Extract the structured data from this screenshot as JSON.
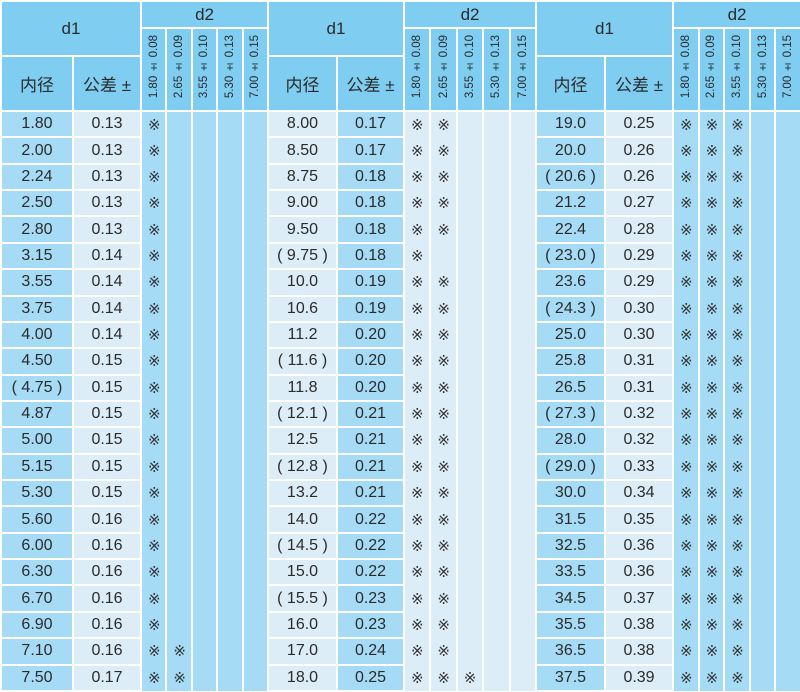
{
  "header": {
    "d1": "d1",
    "d2": "d2",
    "inner_diameter": "内径",
    "tolerance": "公差 ±",
    "d2_sizes": [
      "1.80 ± 0.08",
      "2.65 ± 0.09",
      "3.55 ± 0.10",
      "5.30 ± 0.13",
      "7.00 ± 0.15"
    ]
  },
  "mark": "※",
  "colors": {
    "header": "#7fcdf1",
    "cell_blue": "#a6dbf5",
    "cell_light": "#dcedf8"
  },
  "blocks": [
    {
      "rows": [
        {
          "d1": "1.80",
          "tol": "0.13",
          "marks": [
            1,
            0,
            0,
            0,
            0
          ]
        },
        {
          "d1": "2.00",
          "tol": "0.13",
          "marks": [
            1,
            0,
            0,
            0,
            0
          ]
        },
        {
          "d1": "2.24",
          "tol": "0.13",
          "marks": [
            1,
            0,
            0,
            0,
            0
          ]
        },
        {
          "d1": "2.50",
          "tol": "0.13",
          "marks": [
            1,
            0,
            0,
            0,
            0
          ]
        },
        {
          "d1": "2.80",
          "tol": "0.13",
          "marks": [
            1,
            0,
            0,
            0,
            0
          ]
        },
        {
          "d1": "3.15",
          "tol": "0.14",
          "marks": [
            1,
            0,
            0,
            0,
            0
          ]
        },
        {
          "d1": "3.55",
          "tol": "0.14",
          "marks": [
            1,
            0,
            0,
            0,
            0
          ]
        },
        {
          "d1": "3.75",
          "tol": "0.14",
          "marks": [
            1,
            0,
            0,
            0,
            0
          ]
        },
        {
          "d1": "4.00",
          "tol": "0.14",
          "marks": [
            1,
            0,
            0,
            0,
            0
          ]
        },
        {
          "d1": "4.50",
          "tol": "0.15",
          "marks": [
            1,
            0,
            0,
            0,
            0
          ]
        },
        {
          "d1": "( 4.75 )",
          "tol": "0.15",
          "marks": [
            1,
            0,
            0,
            0,
            0
          ]
        },
        {
          "d1": "4.87",
          "tol": "0.15",
          "marks": [
            1,
            0,
            0,
            0,
            0
          ]
        },
        {
          "d1": "5.00",
          "tol": "0.15",
          "marks": [
            1,
            0,
            0,
            0,
            0
          ]
        },
        {
          "d1": "5.15",
          "tol": "0.15",
          "marks": [
            1,
            0,
            0,
            0,
            0
          ]
        },
        {
          "d1": "5.30",
          "tol": "0.15",
          "marks": [
            1,
            0,
            0,
            0,
            0
          ]
        },
        {
          "d1": "5.60",
          "tol": "0.16",
          "marks": [
            1,
            0,
            0,
            0,
            0
          ]
        },
        {
          "d1": "6.00",
          "tol": "0.16",
          "marks": [
            1,
            0,
            0,
            0,
            0
          ]
        },
        {
          "d1": "6.30",
          "tol": "0.16",
          "marks": [
            1,
            0,
            0,
            0,
            0
          ]
        },
        {
          "d1": "6.70",
          "tol": "0.16",
          "marks": [
            1,
            0,
            0,
            0,
            0
          ]
        },
        {
          "d1": "6.90",
          "tol": "0.16",
          "marks": [
            1,
            0,
            0,
            0,
            0
          ]
        },
        {
          "d1": "7.10",
          "tol": "0.16",
          "marks": [
            1,
            1,
            0,
            0,
            0
          ]
        },
        {
          "d1": "7.50",
          "tol": "0.17",
          "marks": [
            1,
            1,
            0,
            0,
            0
          ]
        }
      ]
    },
    {
      "rows": [
        {
          "d1": "8.00",
          "tol": "0.17",
          "marks": [
            1,
            1,
            0,
            0,
            0
          ]
        },
        {
          "d1": "8.50",
          "tol": "0.17",
          "marks": [
            1,
            1,
            0,
            0,
            0
          ]
        },
        {
          "d1": "8.75",
          "tol": "0.18",
          "marks": [
            1,
            1,
            0,
            0,
            0
          ]
        },
        {
          "d1": "9.00",
          "tol": "0.18",
          "marks": [
            1,
            1,
            0,
            0,
            0
          ]
        },
        {
          "d1": "9.50",
          "tol": "0.18",
          "marks": [
            1,
            1,
            0,
            0,
            0
          ]
        },
        {
          "d1": "( 9.75 )",
          "tol": "0.18",
          "marks": [
            1,
            0,
            0,
            0,
            0
          ]
        },
        {
          "d1": "10.0",
          "tol": "0.19",
          "marks": [
            1,
            1,
            0,
            0,
            0
          ]
        },
        {
          "d1": "10.6",
          "tol": "0.19",
          "marks": [
            1,
            1,
            0,
            0,
            0
          ]
        },
        {
          "d1": "11.2",
          "tol": "0.20",
          "marks": [
            1,
            1,
            0,
            0,
            0
          ]
        },
        {
          "d1": "( 11.6 )",
          "tol": "0.20",
          "marks": [
            1,
            1,
            0,
            0,
            0
          ]
        },
        {
          "d1": "11.8",
          "tol": "0.20",
          "marks": [
            1,
            1,
            0,
            0,
            0
          ]
        },
        {
          "d1": "( 12.1 )",
          "tol": "0.21",
          "marks": [
            1,
            1,
            0,
            0,
            0
          ]
        },
        {
          "d1": "12.5",
          "tol": "0.21",
          "marks": [
            1,
            1,
            0,
            0,
            0
          ]
        },
        {
          "d1": "( 12.8 )",
          "tol": "0.21",
          "marks": [
            1,
            1,
            0,
            0,
            0
          ]
        },
        {
          "d1": "13.2",
          "tol": "0.21",
          "marks": [
            1,
            1,
            0,
            0,
            0
          ]
        },
        {
          "d1": "14.0",
          "tol": "0.22",
          "marks": [
            1,
            1,
            0,
            0,
            0
          ]
        },
        {
          "d1": "( 14.5 )",
          "tol": "0.22",
          "marks": [
            1,
            1,
            0,
            0,
            0
          ]
        },
        {
          "d1": "15.0",
          "tol": "0.22",
          "marks": [
            1,
            1,
            0,
            0,
            0
          ]
        },
        {
          "d1": "( 15.5 )",
          "tol": "0.23",
          "marks": [
            1,
            1,
            0,
            0,
            0
          ]
        },
        {
          "d1": "16.0",
          "tol": "0.23",
          "marks": [
            1,
            1,
            0,
            0,
            0
          ]
        },
        {
          "d1": "17.0",
          "tol": "0.24",
          "marks": [
            1,
            1,
            0,
            0,
            0
          ]
        },
        {
          "d1": "18.0",
          "tol": "0.25",
          "marks": [
            1,
            1,
            1,
            0,
            0
          ]
        }
      ]
    },
    {
      "rows": [
        {
          "d1": "19.0",
          "tol": "0.25",
          "marks": [
            1,
            1,
            1,
            0,
            0
          ]
        },
        {
          "d1": "20.0",
          "tol": "0.26",
          "marks": [
            1,
            1,
            1,
            0,
            0
          ]
        },
        {
          "d1": "( 20.6 )",
          "tol": "0.26",
          "marks": [
            1,
            1,
            1,
            0,
            0
          ]
        },
        {
          "d1": "21.2",
          "tol": "0.27",
          "marks": [
            1,
            1,
            1,
            0,
            0
          ]
        },
        {
          "d1": "22.4",
          "tol": "0.28",
          "marks": [
            1,
            1,
            1,
            0,
            0
          ]
        },
        {
          "d1": "( 23.0 )",
          "tol": "0.29",
          "marks": [
            1,
            1,
            1,
            0,
            0
          ]
        },
        {
          "d1": "23.6",
          "tol": "0.29",
          "marks": [
            1,
            1,
            1,
            0,
            0
          ]
        },
        {
          "d1": "( 24.3 )",
          "tol": "0.30",
          "marks": [
            1,
            1,
            1,
            0,
            0
          ]
        },
        {
          "d1": "25.0",
          "tol": "0.30",
          "marks": [
            1,
            1,
            1,
            0,
            0
          ]
        },
        {
          "d1": "25.8",
          "tol": "0.31",
          "marks": [
            1,
            1,
            1,
            0,
            0
          ]
        },
        {
          "d1": "26.5",
          "tol": "0.31",
          "marks": [
            1,
            1,
            1,
            0,
            0
          ]
        },
        {
          "d1": "( 27.3 )",
          "tol": "0.32",
          "marks": [
            1,
            1,
            1,
            0,
            0
          ]
        },
        {
          "d1": "28.0",
          "tol": "0.32",
          "marks": [
            1,
            1,
            1,
            0,
            0
          ]
        },
        {
          "d1": "( 29.0 )",
          "tol": "0.33",
          "marks": [
            1,
            1,
            1,
            0,
            0
          ]
        },
        {
          "d1": "30.0",
          "tol": "0.34",
          "marks": [
            1,
            1,
            1,
            0,
            0
          ]
        },
        {
          "d1": "31.5",
          "tol": "0.35",
          "marks": [
            1,
            1,
            1,
            0,
            0
          ]
        },
        {
          "d1": "32.5",
          "tol": "0.36",
          "marks": [
            1,
            1,
            1,
            0,
            0
          ]
        },
        {
          "d1": "33.5",
          "tol": "0.36",
          "marks": [
            1,
            1,
            1,
            0,
            0
          ]
        },
        {
          "d1": "34.5",
          "tol": "0.37",
          "marks": [
            1,
            1,
            1,
            0,
            0
          ]
        },
        {
          "d1": "35.5",
          "tol": "0.38",
          "marks": [
            1,
            1,
            1,
            0,
            0
          ]
        },
        {
          "d1": "36.5",
          "tol": "0.38",
          "marks": [
            1,
            1,
            1,
            0,
            0
          ]
        },
        {
          "d1": "37.5",
          "tol": "0.39",
          "marks": [
            1,
            1,
            1,
            0,
            0
          ]
        }
      ]
    }
  ]
}
